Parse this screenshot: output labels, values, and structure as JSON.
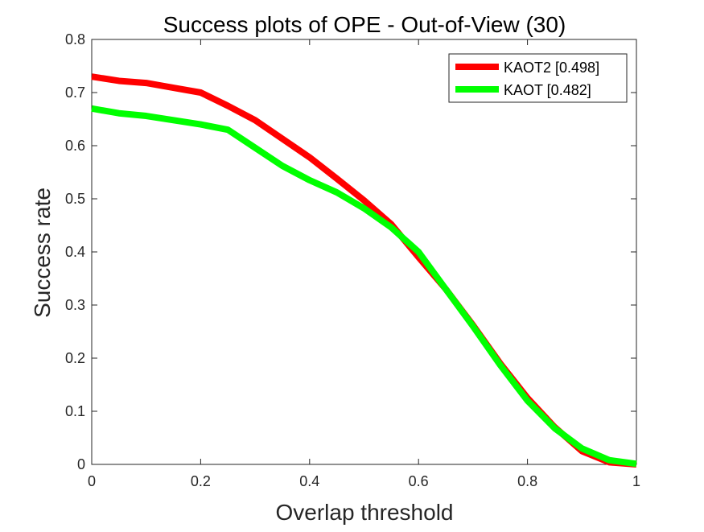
{
  "chart_data": {
    "type": "line",
    "title": "Success plots of OPE - Out-of-View (30)",
    "xlabel": "Overlap threshold",
    "ylabel": "Success rate",
    "xlim": [
      0,
      1
    ],
    "ylim": [
      0,
      0.8
    ],
    "x_ticks": [
      0,
      0.2,
      0.4,
      0.6,
      0.8,
      1
    ],
    "x_tick_labels": [
      "0",
      "0.2",
      "0.4",
      "0.6",
      "0.8",
      "1"
    ],
    "y_ticks": [
      0,
      0.1,
      0.2,
      0.3,
      0.4,
      0.5,
      0.6,
      0.7,
      0.8
    ],
    "y_tick_labels": [
      "0",
      "0.1",
      "0.2",
      "0.3",
      "0.4",
      "0.5",
      "0.6",
      "0.7",
      "0.8"
    ],
    "grid": false,
    "legend_position": "top-right",
    "x": [
      0,
      0.05,
      0.1,
      0.15,
      0.2,
      0.25,
      0.3,
      0.35,
      0.4,
      0.45,
      0.5,
      0.55,
      0.6,
      0.65,
      0.7,
      0.75,
      0.8,
      0.85,
      0.9,
      0.95,
      1
    ],
    "series": [
      {
        "name": "KAOT2 [0.498]",
        "color": "#ff0000",
        "values": [
          0.73,
          0.722,
          0.718,
          0.709,
          0.7,
          0.675,
          0.648,
          0.613,
          0.578,
          0.538,
          0.497,
          0.452,
          0.39,
          0.33,
          0.262,
          0.19,
          0.125,
          0.07,
          0.025,
          0.004,
          0
        ]
      },
      {
        "name": "KAOT [0.482]",
        "color": "#00ff00",
        "values": [
          0.67,
          0.661,
          0.656,
          0.648,
          0.64,
          0.63,
          0.596,
          0.562,
          0.535,
          0.512,
          0.482,
          0.446,
          0.4,
          0.33,
          0.26,
          0.187,
          0.12,
          0.068,
          0.03,
          0.008,
          0.001
        ]
      }
    ]
  }
}
